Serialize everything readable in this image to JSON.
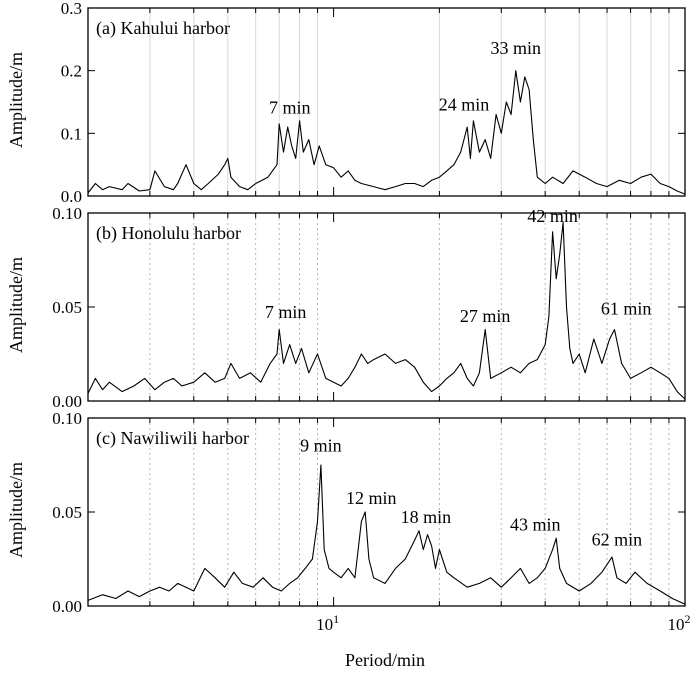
{
  "figure": {
    "xlabel": "Period/min",
    "ylabel": "Amplitude/m",
    "x_tick_labels": [
      {
        "base": "10",
        "exp": "1",
        "value": 10
      },
      {
        "base": "10",
        "exp": "2",
        "value": 100
      }
    ]
  },
  "chart_data": [
    {
      "type": "line",
      "title": "(a) Kahului harbor",
      "xlabel": "Period/min",
      "ylabel": "Amplitude/m",
      "xscale": "log",
      "xlim": [
        2,
        100
      ],
      "ylim": [
        0,
        0.3
      ],
      "yticks": [
        "0.0",
        "0.1",
        "0.2",
        "0.3"
      ],
      "grid": "solid",
      "annotations": [
        {
          "text": "7 min",
          "x": 7.5,
          "y": 0.125
        },
        {
          "text": "24 min",
          "x": 23.5,
          "y": 0.13
        },
        {
          "text": "33 min",
          "x": 33,
          "y": 0.22
        }
      ],
      "series": [
        {
          "name": "Kahului",
          "x": [
            2.0,
            2.1,
            2.2,
            2.3,
            2.5,
            2.6,
            2.8,
            3.0,
            3.1,
            3.3,
            3.5,
            3.6,
            3.8,
            4.0,
            4.2,
            4.4,
            4.7,
            4.9,
            5.0,
            5.1,
            5.4,
            5.7,
            6.0,
            6.5,
            6.9,
            7.0,
            7.2,
            7.4,
            7.6,
            7.8,
            8.0,
            8.2,
            8.5,
            8.8,
            9.1,
            9.5,
            10.0,
            10.5,
            11.0,
            11.5,
            12.0,
            13.0,
            14.0,
            15.0,
            16.0,
            17.0,
            18.0,
            19.0,
            20.0,
            21.0,
            22.0,
            23.0,
            24.0,
            24.5,
            25.0,
            26.0,
            27.0,
            28.0,
            29.0,
            30.0,
            31.0,
            32.0,
            33.0,
            34.0,
            35.0,
            36.0,
            37.0,
            38.0,
            40.0,
            42.0,
            45.0,
            48.0,
            52.0,
            56.0,
            60.0,
            65.0,
            70.0,
            75.0,
            80.0,
            85.0,
            90.0,
            95.0,
            100.0
          ],
          "values": [
            0.005,
            0.02,
            0.01,
            0.015,
            0.01,
            0.02,
            0.008,
            0.01,
            0.04,
            0.015,
            0.01,
            0.02,
            0.05,
            0.02,
            0.01,
            0.02,
            0.035,
            0.05,
            0.06,
            0.03,
            0.015,
            0.01,
            0.02,
            0.03,
            0.05,
            0.115,
            0.07,
            0.11,
            0.08,
            0.06,
            0.12,
            0.07,
            0.09,
            0.05,
            0.08,
            0.05,
            0.045,
            0.03,
            0.04,
            0.025,
            0.02,
            0.015,
            0.01,
            0.015,
            0.02,
            0.02,
            0.015,
            0.025,
            0.03,
            0.04,
            0.05,
            0.07,
            0.11,
            0.06,
            0.12,
            0.07,
            0.09,
            0.06,
            0.13,
            0.1,
            0.15,
            0.13,
            0.2,
            0.15,
            0.19,
            0.17,
            0.09,
            0.03,
            0.02,
            0.03,
            0.02,
            0.04,
            0.03,
            0.02,
            0.015,
            0.025,
            0.02,
            0.03,
            0.035,
            0.02,
            0.015,
            0.008,
            0.003
          ]
        }
      ]
    },
    {
      "type": "line",
      "title": "(b) Honolulu harbor",
      "xlabel": "Period/min",
      "ylabel": "Amplitude/m",
      "xscale": "log",
      "xlim": [
        2,
        100
      ],
      "ylim": [
        0,
        0.1
      ],
      "yticks": [
        "0.00",
        "0.05",
        "0.10"
      ],
      "grid": "dotted",
      "annotations": [
        {
          "text": "7 min",
          "x": 7.3,
          "y": 0.042
        },
        {
          "text": "27 min",
          "x": 27,
          "y": 0.04
        },
        {
          "text": "42 min",
          "x": 42,
          "y": 0.093
        },
        {
          "text": "61 min",
          "x": 68,
          "y": 0.044
        }
      ],
      "series": [
        {
          "name": "Honolulu",
          "x": [
            2.0,
            2.1,
            2.2,
            2.3,
            2.5,
            2.7,
            2.9,
            3.1,
            3.3,
            3.5,
            3.7,
            4.0,
            4.3,
            4.6,
            4.9,
            5.1,
            5.4,
            5.8,
            6.2,
            6.6,
            6.9,
            7.0,
            7.2,
            7.5,
            7.8,
            8.1,
            8.5,
            9.0,
            9.5,
            10.0,
            10.5,
            11.0,
            11.5,
            12.0,
            12.5,
            13.0,
            14.0,
            15.0,
            16.0,
            17.0,
            18.0,
            19.0,
            20.0,
            21.0,
            22.0,
            23.0,
            24.0,
            25.0,
            26.0,
            27.0,
            28.0,
            30.0,
            32.0,
            34.0,
            36.0,
            38.0,
            40.0,
            41.0,
            42.0,
            43.0,
            44.0,
            45.0,
            46.0,
            47.0,
            48.0,
            50.0,
            52.0,
            55.0,
            58.0,
            61.0,
            63.0,
            66.0,
            70.0,
            75.0,
            80.0,
            85.0,
            90.0,
            95.0,
            100.0
          ],
          "values": [
            0.004,
            0.012,
            0.006,
            0.01,
            0.005,
            0.008,
            0.012,
            0.006,
            0.01,
            0.012,
            0.008,
            0.01,
            0.015,
            0.01,
            0.012,
            0.02,
            0.012,
            0.015,
            0.01,
            0.02,
            0.025,
            0.038,
            0.02,
            0.03,
            0.02,
            0.028,
            0.015,
            0.025,
            0.012,
            0.01,
            0.008,
            0.012,
            0.018,
            0.025,
            0.02,
            0.022,
            0.025,
            0.02,
            0.022,
            0.018,
            0.01,
            0.005,
            0.008,
            0.012,
            0.015,
            0.02,
            0.012,
            0.008,
            0.015,
            0.038,
            0.012,
            0.015,
            0.018,
            0.015,
            0.02,
            0.022,
            0.03,
            0.045,
            0.09,
            0.065,
            0.078,
            0.095,
            0.05,
            0.028,
            0.02,
            0.025,
            0.015,
            0.033,
            0.02,
            0.033,
            0.038,
            0.02,
            0.012,
            0.015,
            0.018,
            0.015,
            0.012,
            0.005,
            0.001
          ]
        }
      ]
    },
    {
      "type": "line",
      "title": "(c) Nawiliwili harbor",
      "xlabel": "Period/min",
      "ylabel": "Amplitude/m",
      "xscale": "log",
      "xlim": [
        2,
        100
      ],
      "ylim": [
        0,
        0.1
      ],
      "yticks": [
        "0.00",
        "0.05",
        "0.10"
      ],
      "grid": "dotted",
      "annotations": [
        {
          "text": "9 min",
          "x": 9.2,
          "y": 0.08
        },
        {
          "text": "12 min",
          "x": 12.8,
          "y": 0.052
        },
        {
          "text": "18 min",
          "x": 18.3,
          "y": 0.042
        },
        {
          "text": "43 min",
          "x": 37.5,
          "y": 0.038
        },
        {
          "text": "62 min",
          "x": 64,
          "y": 0.03
        }
      ],
      "series": [
        {
          "name": "Nawiliwili",
          "x": [
            2.0,
            2.2,
            2.4,
            2.6,
            2.8,
            3.0,
            3.2,
            3.4,
            3.6,
            3.8,
            4.0,
            4.3,
            4.6,
            4.9,
            5.2,
            5.5,
            5.9,
            6.3,
            6.7,
            7.1,
            7.5,
            7.9,
            8.3,
            8.7,
            9.0,
            9.2,
            9.4,
            9.7,
            10.0,
            10.5,
            11.0,
            11.5,
            12.0,
            12.3,
            12.6,
            13.0,
            14.0,
            15.0,
            16.0,
            17.0,
            17.5,
            18.0,
            18.5,
            19.0,
            19.5,
            20.0,
            21.0,
            22.0,
            24.0,
            26.0,
            28.0,
            30.0,
            32.0,
            34.0,
            36.0,
            38.0,
            40.0,
            42.0,
            43.0,
            44.0,
            46.0,
            50.0,
            54.0,
            58.0,
            62.0,
            64.0,
            68.0,
            72.0,
            78.0,
            85.0,
            92.0,
            100.0
          ],
          "values": [
            0.003,
            0.006,
            0.004,
            0.008,
            0.005,
            0.008,
            0.01,
            0.008,
            0.012,
            0.01,
            0.008,
            0.02,
            0.015,
            0.01,
            0.018,
            0.012,
            0.01,
            0.015,
            0.01,
            0.008,
            0.012,
            0.015,
            0.02,
            0.025,
            0.045,
            0.075,
            0.03,
            0.02,
            0.018,
            0.015,
            0.02,
            0.015,
            0.045,
            0.05,
            0.025,
            0.015,
            0.012,
            0.02,
            0.025,
            0.035,
            0.04,
            0.03,
            0.038,
            0.032,
            0.02,
            0.03,
            0.018,
            0.015,
            0.01,
            0.012,
            0.015,
            0.01,
            0.015,
            0.02,
            0.012,
            0.015,
            0.02,
            0.03,
            0.036,
            0.02,
            0.012,
            0.008,
            0.012,
            0.018,
            0.026,
            0.015,
            0.012,
            0.018,
            0.012,
            0.008,
            0.004,
            0.001
          ]
        }
      ]
    }
  ]
}
